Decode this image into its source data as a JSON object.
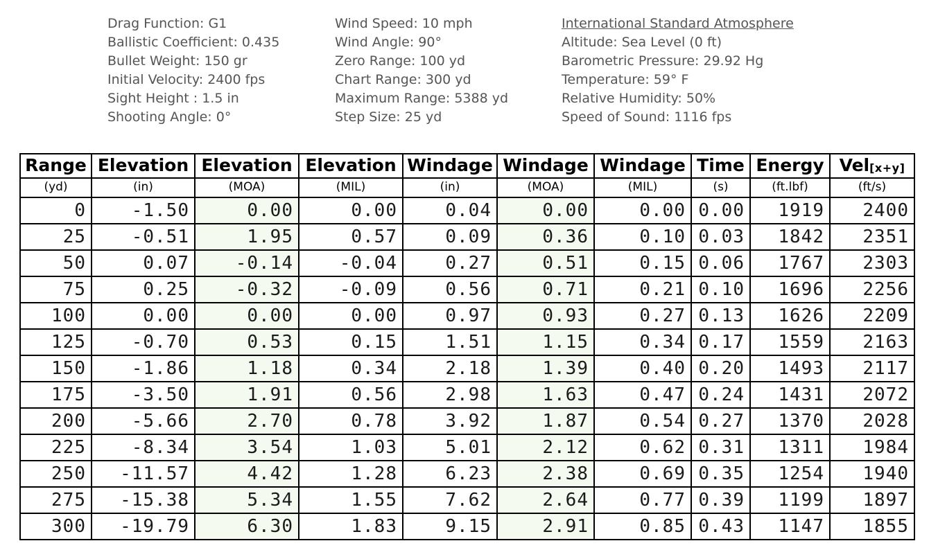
{
  "info": {
    "columns": [
      {
        "name": "load",
        "lines": [
          "Drag Function: G1",
          "Ballistic Coefficient: 0.435",
          "Bullet Weight: 150 gr",
          "Initial Velocity: 2400 fps",
          "Sight Height : 1.5 in",
          "Shooting Angle: 0°"
        ]
      },
      {
        "name": "conditions",
        "lines": [
          "Wind Speed: 10 mph",
          "Wind Angle: 90°",
          "Zero Range: 100 yd",
          "Chart Range: 300 yd",
          "Maximum Range: 5388 yd",
          "Step Size: 25 yd"
        ]
      },
      {
        "name": "atmosphere",
        "heading": "International Standard Atmosphere",
        "lines": [
          "Altitude: Sea Level (0 ft)",
          "Barometric Pressure: 29.92 Hg",
          "Temperature: 59° F",
          "Relative Humidity: 50%",
          "Speed of Sound: 1116 fps"
        ]
      }
    ]
  },
  "table": {
    "columns": [
      {
        "key": "range",
        "label": "Range",
        "unit": "(yd)"
      },
      {
        "key": "elevation-in",
        "label": "Elevation",
        "unit": "(in)"
      },
      {
        "key": "elevation-moa",
        "label": "Elevation",
        "unit": "(MOA)",
        "highlight": true
      },
      {
        "key": "elevation-mil",
        "label": "Elevation",
        "unit": "(MIL)"
      },
      {
        "key": "windage-in",
        "label": "Windage",
        "unit": "(in)"
      },
      {
        "key": "windage-moa",
        "label": "Windage",
        "unit": "(MOA)",
        "highlight": true
      },
      {
        "key": "windage-mil",
        "label": "Windage",
        "unit": "(MIL)"
      },
      {
        "key": "time",
        "label": "Time",
        "unit": "(s)"
      },
      {
        "key": "energy",
        "label": "Energy",
        "unit": "(ft.lbf)"
      },
      {
        "key": "velocity",
        "label": "Vel",
        "label_sub": "[x+y]",
        "unit": "(ft/s)"
      }
    ],
    "rows": [
      [
        "0",
        "-1.50",
        "0.00",
        "0.00",
        "0.04",
        "0.00",
        "0.00",
        "0.00",
        "1919",
        "2400"
      ],
      [
        "25",
        "-0.51",
        "1.95",
        "0.57",
        "0.09",
        "0.36",
        "0.10",
        "0.03",
        "1842",
        "2351"
      ],
      [
        "50",
        "0.07",
        "-0.14",
        "-0.04",
        "0.27",
        "0.51",
        "0.15",
        "0.06",
        "1767",
        "2303"
      ],
      [
        "75",
        "0.25",
        "-0.32",
        "-0.09",
        "0.56",
        "0.71",
        "0.21",
        "0.10",
        "1696",
        "2256"
      ],
      [
        "100",
        "0.00",
        "0.00",
        "0.00",
        "0.97",
        "0.93",
        "0.27",
        "0.13",
        "1626",
        "2209"
      ],
      [
        "125",
        "-0.70",
        "0.53",
        "0.15",
        "1.51",
        "1.15",
        "0.34",
        "0.17",
        "1559",
        "2163"
      ],
      [
        "150",
        "-1.86",
        "1.18",
        "0.34",
        "2.18",
        "1.39",
        "0.40",
        "0.20",
        "1493",
        "2117"
      ],
      [
        "175",
        "-3.50",
        "1.91",
        "0.56",
        "2.98",
        "1.63",
        "0.47",
        "0.24",
        "1431",
        "2072"
      ],
      [
        "200",
        "-5.66",
        "2.70",
        "0.78",
        "3.92",
        "1.87",
        "0.54",
        "0.27",
        "1370",
        "2028"
      ],
      [
        "225",
        "-8.34",
        "3.54",
        "1.03",
        "5.01",
        "2.12",
        "0.62",
        "0.31",
        "1311",
        "1984"
      ],
      [
        "250",
        "-11.57",
        "4.42",
        "1.28",
        "6.23",
        "2.38",
        "0.69",
        "0.35",
        "1254",
        "1940"
      ],
      [
        "275",
        "-15.38",
        "5.34",
        "1.55",
        "7.62",
        "2.64",
        "0.77",
        "0.39",
        "1199",
        "1897"
      ],
      [
        "300",
        "-19.79",
        "6.30",
        "1.83",
        "9.15",
        "2.91",
        "0.85",
        "0.43",
        "1147",
        "1855"
      ]
    ]
  },
  "colors": {
    "moa_highlight": "#f4faef",
    "info_text": "#555555",
    "table_border": "#000000",
    "data_text": "#1a1a1a"
  }
}
